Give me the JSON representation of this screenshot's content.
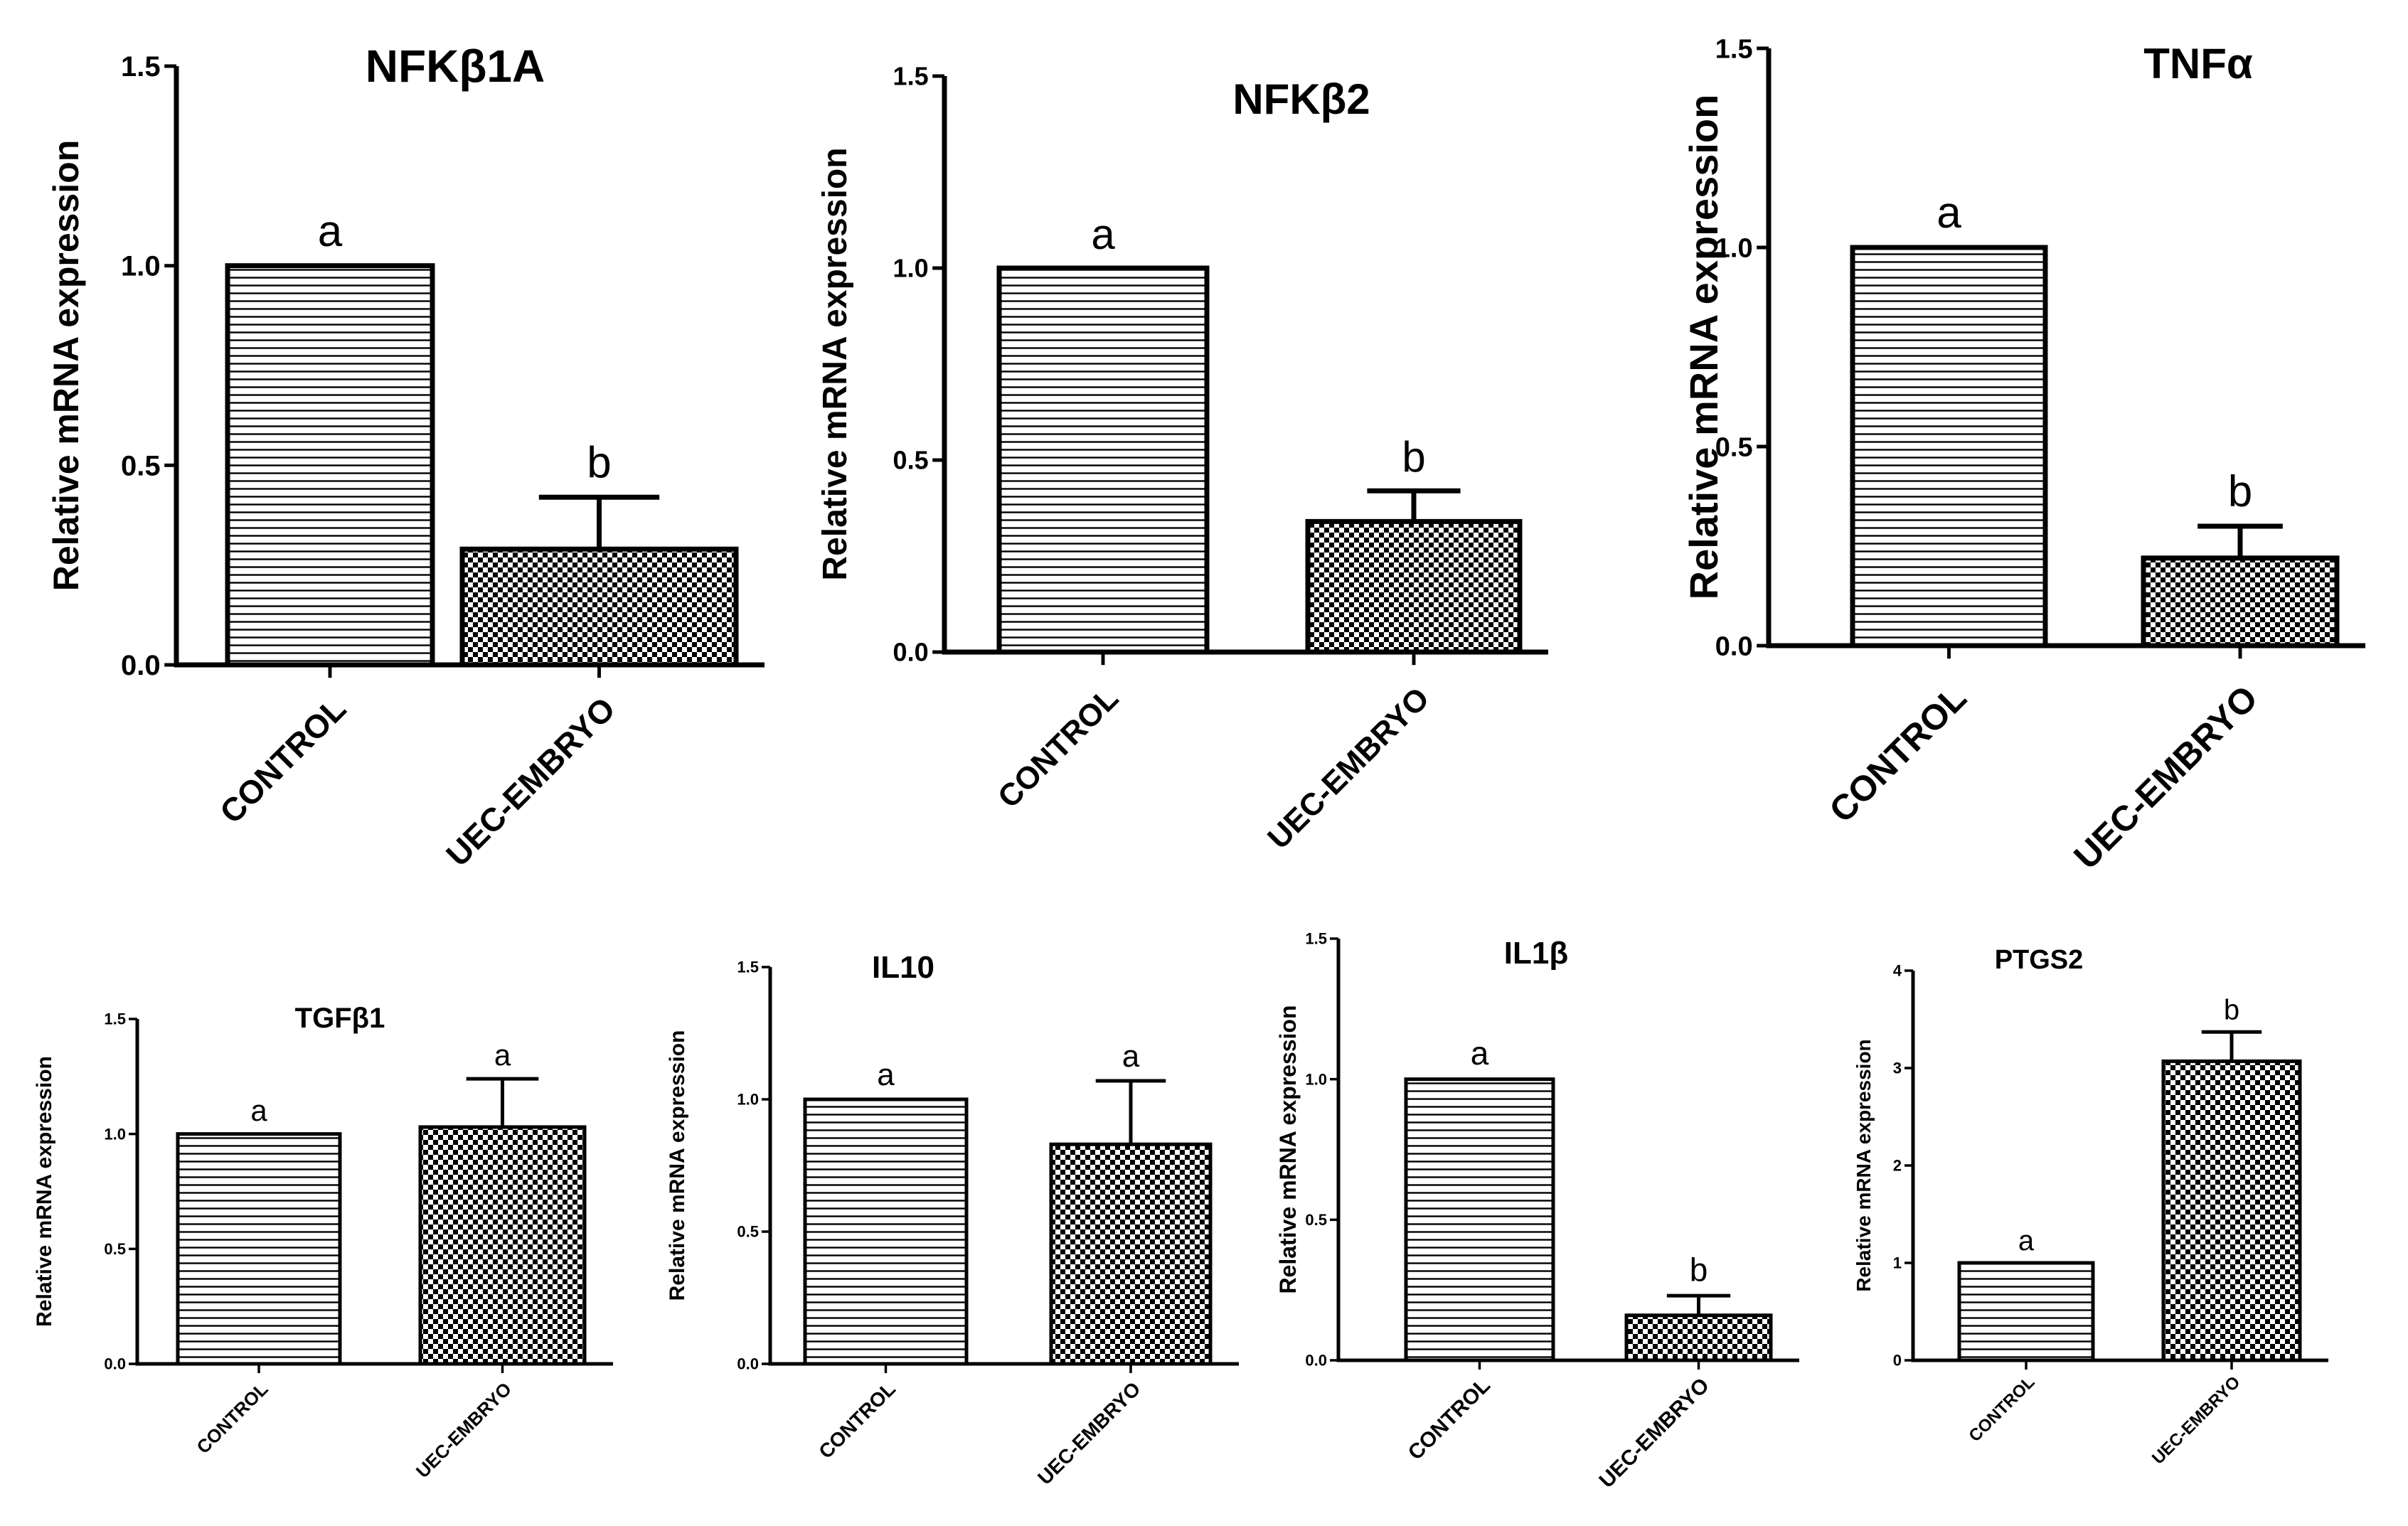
{
  "figure": {
    "ylabel": "Relative mRNA expression",
    "categories": [
      "CONTROL",
      "UEC-EMBRYO"
    ]
  },
  "chart_data": [
    {
      "type": "bar",
      "title": "NFKβ1A",
      "categories": [
        "CONTROL",
        "UEC-EMBRYO"
      ],
      "values": [
        1.0,
        0.29
      ],
      "errors": [
        0,
        0.13
      ],
      "letters": [
        "a",
        "b"
      ],
      "ylabel": "Relative mRNA expression",
      "ylim": [
        0,
        1.5
      ],
      "yticks": [
        0.0,
        0.5,
        1.0,
        1.5
      ],
      "ytick_labels": [
        "0.0",
        "0.5",
        "1.0",
        "1.5"
      ]
    },
    {
      "type": "bar",
      "title": "NFKβ2",
      "categories": [
        "CONTROL",
        "UEC-EMBRYO"
      ],
      "values": [
        1.0,
        0.34
      ],
      "errors": [
        0,
        0.08
      ],
      "letters": [
        "a",
        "b"
      ],
      "ylabel": "Relative mRNA expression",
      "ylim": [
        0,
        1.5
      ],
      "yticks": [
        0.0,
        0.5,
        1.0,
        1.5
      ],
      "ytick_labels": [
        "0.0",
        "0.5",
        "1.0",
        "1.5"
      ]
    },
    {
      "type": "bar",
      "title": "TNFα",
      "categories": [
        "CONTROL",
        "UEC-EMBRYO"
      ],
      "values": [
        1.0,
        0.22
      ],
      "errors": [
        0,
        0.08
      ],
      "letters": [
        "a",
        "b"
      ],
      "ylabel": "Relative mRNA expression",
      "ylim": [
        0,
        1.5
      ],
      "yticks": [
        0.0,
        0.5,
        1.0,
        1.5
      ],
      "ytick_labels": [
        "0.0",
        "0.5",
        "1.0",
        "1.5"
      ]
    },
    {
      "type": "bar",
      "title": "TGFβ1",
      "categories": [
        "CONTROL",
        "UEC-EMBRYO"
      ],
      "values": [
        1.0,
        1.03
      ],
      "errors": [
        0,
        0.21
      ],
      "letters": [
        "a",
        "a"
      ],
      "ylabel": "Relative mRNA expression",
      "ylim": [
        0,
        1.5
      ],
      "yticks": [
        0.0,
        0.5,
        1.0,
        1.5
      ],
      "ytick_labels": [
        "0.0",
        "0.5",
        "1.0",
        "1.5"
      ]
    },
    {
      "type": "bar",
      "title": "IL10",
      "categories": [
        "CONTROL",
        "UEC-EMBRYO"
      ],
      "values": [
        1.0,
        0.83
      ],
      "errors": [
        0,
        0.24
      ],
      "letters": [
        "a",
        "a"
      ],
      "ylabel": "Relative mRNA expression",
      "ylim": [
        0,
        1.5
      ],
      "yticks": [
        0.0,
        0.5,
        1.0,
        1.5
      ],
      "ytick_labels": [
        "0.0",
        "0.5",
        "1.0",
        "1.5"
      ]
    },
    {
      "type": "bar",
      "title": "IL1β",
      "categories": [
        "CONTROL",
        "UEC-EMBRYO"
      ],
      "values": [
        1.0,
        0.16
      ],
      "errors": [
        0,
        0.07
      ],
      "letters": [
        "a",
        "b"
      ],
      "ylabel": "Relative mRNA expression",
      "ylim": [
        0,
        1.5
      ],
      "yticks": [
        0.0,
        0.5,
        1.0,
        1.5
      ],
      "ytick_labels": [
        "0.0",
        "0.5",
        "1.0",
        "1.5"
      ]
    },
    {
      "type": "bar",
      "title": "PTGS2",
      "categories": [
        "CONTROL",
        "UEC-EMBRYO"
      ],
      "values": [
        1.0,
        3.07
      ],
      "errors": [
        0,
        0.3
      ],
      "letters": [
        "a",
        "b"
      ],
      "ylabel": "Relative mRNA expression",
      "ylim": [
        0,
        4
      ],
      "yticks": [
        0,
        1,
        2,
        3,
        4
      ],
      "ytick_labels": [
        "0",
        "1",
        "2",
        "3",
        "4"
      ]
    }
  ]
}
